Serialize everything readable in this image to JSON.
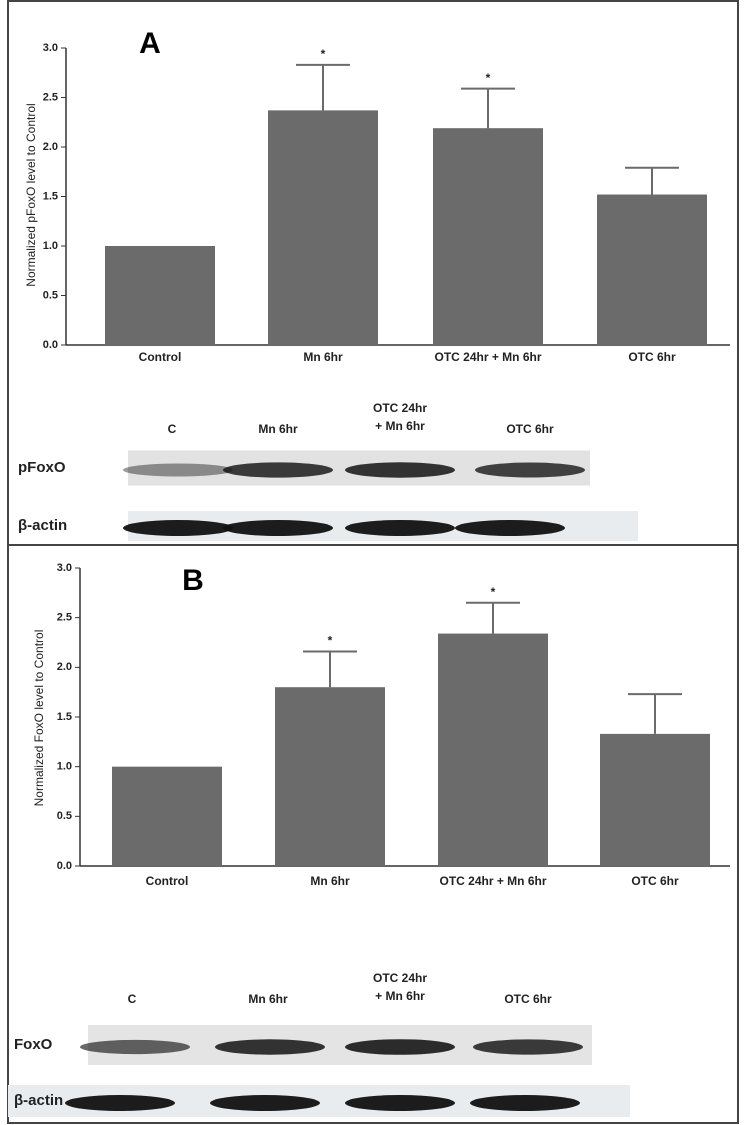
{
  "chart_data": [
    {
      "type": "bar",
      "panel_label": "A",
      "y_label": "Normalized pFoxO level to Control",
      "categories": [
        "Control",
        "Mn 6hr",
        "OTC 24hr + Mn 6hr",
        "OTC 6hr"
      ],
      "values": [
        1.0,
        2.37,
        2.19,
        1.52
      ],
      "errors": [
        0,
        0.46,
        0.4,
        0.27
      ],
      "markers": [
        null,
        "*",
        "*",
        null
      ],
      "color": "#6b6b6b",
      "ylim": [
        0,
        3
      ],
      "yticks": [
        {
          "value": 0,
          "label": "0.0"
        },
        0.5,
        {
          "value": 1,
          "label": "1.0"
        },
        1.5,
        {
          "value": 2,
          "label": "2.0"
        },
        2.5,
        {
          "value": 3,
          "label": "3.0"
        }
      ]
    },
    {
      "type": "bar",
      "panel_label": "B",
      "y_label": "Normalized FoxO level to Control",
      "categories": [
        "Control",
        "Mn 6hr",
        "OTC 24hr + Mn 6hr",
        "OTC 6hr"
      ],
      "values": [
        1.0,
        1.8,
        2.34,
        1.33
      ],
      "errors": [
        0,
        0.36,
        0.31,
        0.4
      ],
      "markers": [
        null,
        "*",
        "*",
        null
      ],
      "color": "#6b6b6b",
      "ylim": [
        0,
        3
      ],
      "yticks": [
        {
          "value": 0,
          "label": "0.0"
        },
        0.5,
        {
          "value": 1,
          "label": "1.0"
        },
        1.5,
        {
          "value": 2,
          "label": "2.0"
        },
        2.5,
        {
          "value": 3,
          "label": "3.0"
        }
      ]
    }
  ],
  "blots": [
    {
      "lanes": [
        [
          "C"
        ],
        [
          "Mn 6hr"
        ],
        [
          "OTC 24hr",
          "+ Mn 6hr"
        ],
        [
          "OTC 6hr"
        ]
      ],
      "rows": [
        "pFoxO",
        "β-actin"
      ]
    },
    {
      "lanes": [
        [
          "C"
        ],
        [
          "Mn 6hr"
        ],
        [
          "OTC 24hr",
          "+ Mn 6hr"
        ],
        [
          "OTC 6hr"
        ]
      ],
      "rows": [
        "FoxO",
        "β-actin"
      ]
    }
  ]
}
